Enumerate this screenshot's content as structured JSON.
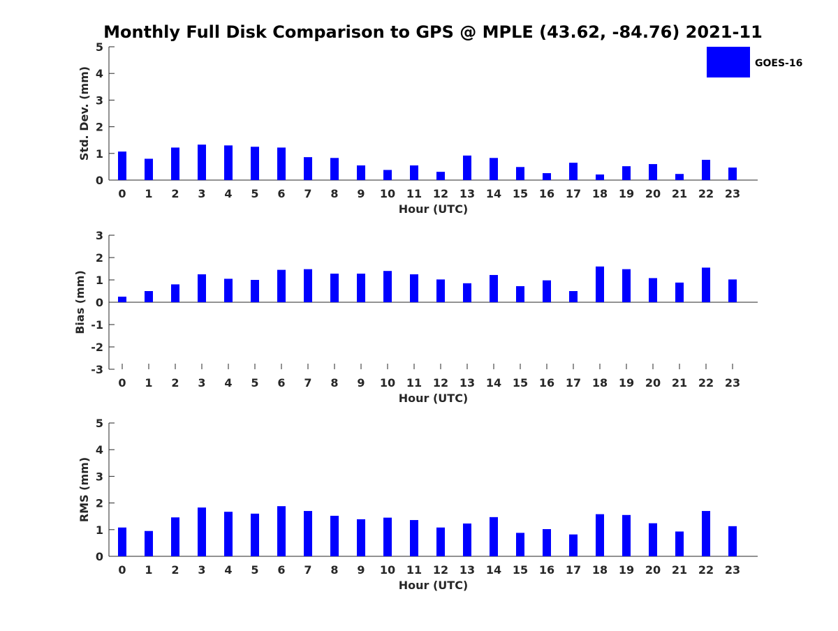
{
  "title": "Monthly Full Disk Comparison to GPS @ MPLE (43.62, -84.76) 2021-11",
  "legend": {
    "label": "GOES-16",
    "color": "#0000ff"
  },
  "bar_color": "#0000ff",
  "chart_data": [
    {
      "type": "bar",
      "xlabel": "Hour (UTC)",
      "ylabel": "Std. Dev. (mm)",
      "ylim": [
        0,
        5
      ],
      "yticks": [
        "0",
        "1",
        "2",
        "3",
        "4",
        "5"
      ],
      "categories": [
        "0",
        "1",
        "2",
        "3",
        "4",
        "5",
        "6",
        "7",
        "8",
        "9",
        "10",
        "11",
        "12",
        "13",
        "14",
        "15",
        "16",
        "17",
        "18",
        "19",
        "20",
        "21",
        "22",
        "23"
      ],
      "series": [
        {
          "name": "GOES-16",
          "values": [
            1.07,
            0.8,
            1.22,
            1.33,
            1.3,
            1.25,
            1.22,
            0.86,
            0.83,
            0.55,
            0.38,
            0.55,
            0.31,
            0.92,
            0.83,
            0.49,
            0.26,
            0.65,
            0.21,
            0.52,
            0.6,
            0.23,
            0.76,
            0.47
          ]
        }
      ]
    },
    {
      "type": "bar",
      "xlabel": "Hour (UTC)",
      "ylabel": "Bias (mm)",
      "ylim": [
        -3,
        3
      ],
      "yticks": [
        "-3",
        "-2",
        "-1",
        "0",
        "1",
        "2",
        "3"
      ],
      "categories": [
        "0",
        "1",
        "2",
        "3",
        "4",
        "5",
        "6",
        "7",
        "8",
        "9",
        "10",
        "11",
        "12",
        "13",
        "14",
        "15",
        "16",
        "17",
        "18",
        "19",
        "20",
        "21",
        "22",
        "23"
      ],
      "series": [
        {
          "name": "GOES-16",
          "values": [
            0.25,
            0.5,
            0.8,
            1.25,
            1.05,
            1.0,
            1.45,
            1.48,
            1.28,
            1.28,
            1.4,
            1.25,
            1.02,
            0.85,
            1.22,
            0.72,
            0.98,
            0.5,
            1.6,
            1.48,
            1.08,
            0.88,
            1.55,
            1.02
          ]
        }
      ]
    },
    {
      "type": "bar",
      "xlabel": "Hour (UTC)",
      "ylabel": "RMS (mm)",
      "ylim": [
        0,
        5
      ],
      "yticks": [
        "0",
        "1",
        "2",
        "3",
        "4",
        "5"
      ],
      "categories": [
        "0",
        "1",
        "2",
        "3",
        "4",
        "5",
        "6",
        "7",
        "8",
        "9",
        "10",
        "11",
        "12",
        "13",
        "14",
        "15",
        "16",
        "17",
        "18",
        "19",
        "20",
        "21",
        "22",
        "23"
      ],
      "series": [
        {
          "name": "GOES-16",
          "values": [
            1.08,
            0.95,
            1.46,
            1.83,
            1.67,
            1.6,
            1.88,
            1.7,
            1.52,
            1.39,
            1.45,
            1.36,
            1.08,
            1.23,
            1.47,
            0.88,
            1.02,
            0.82,
            1.58,
            1.55,
            1.24,
            0.93,
            1.7,
            1.13
          ]
        }
      ]
    }
  ]
}
